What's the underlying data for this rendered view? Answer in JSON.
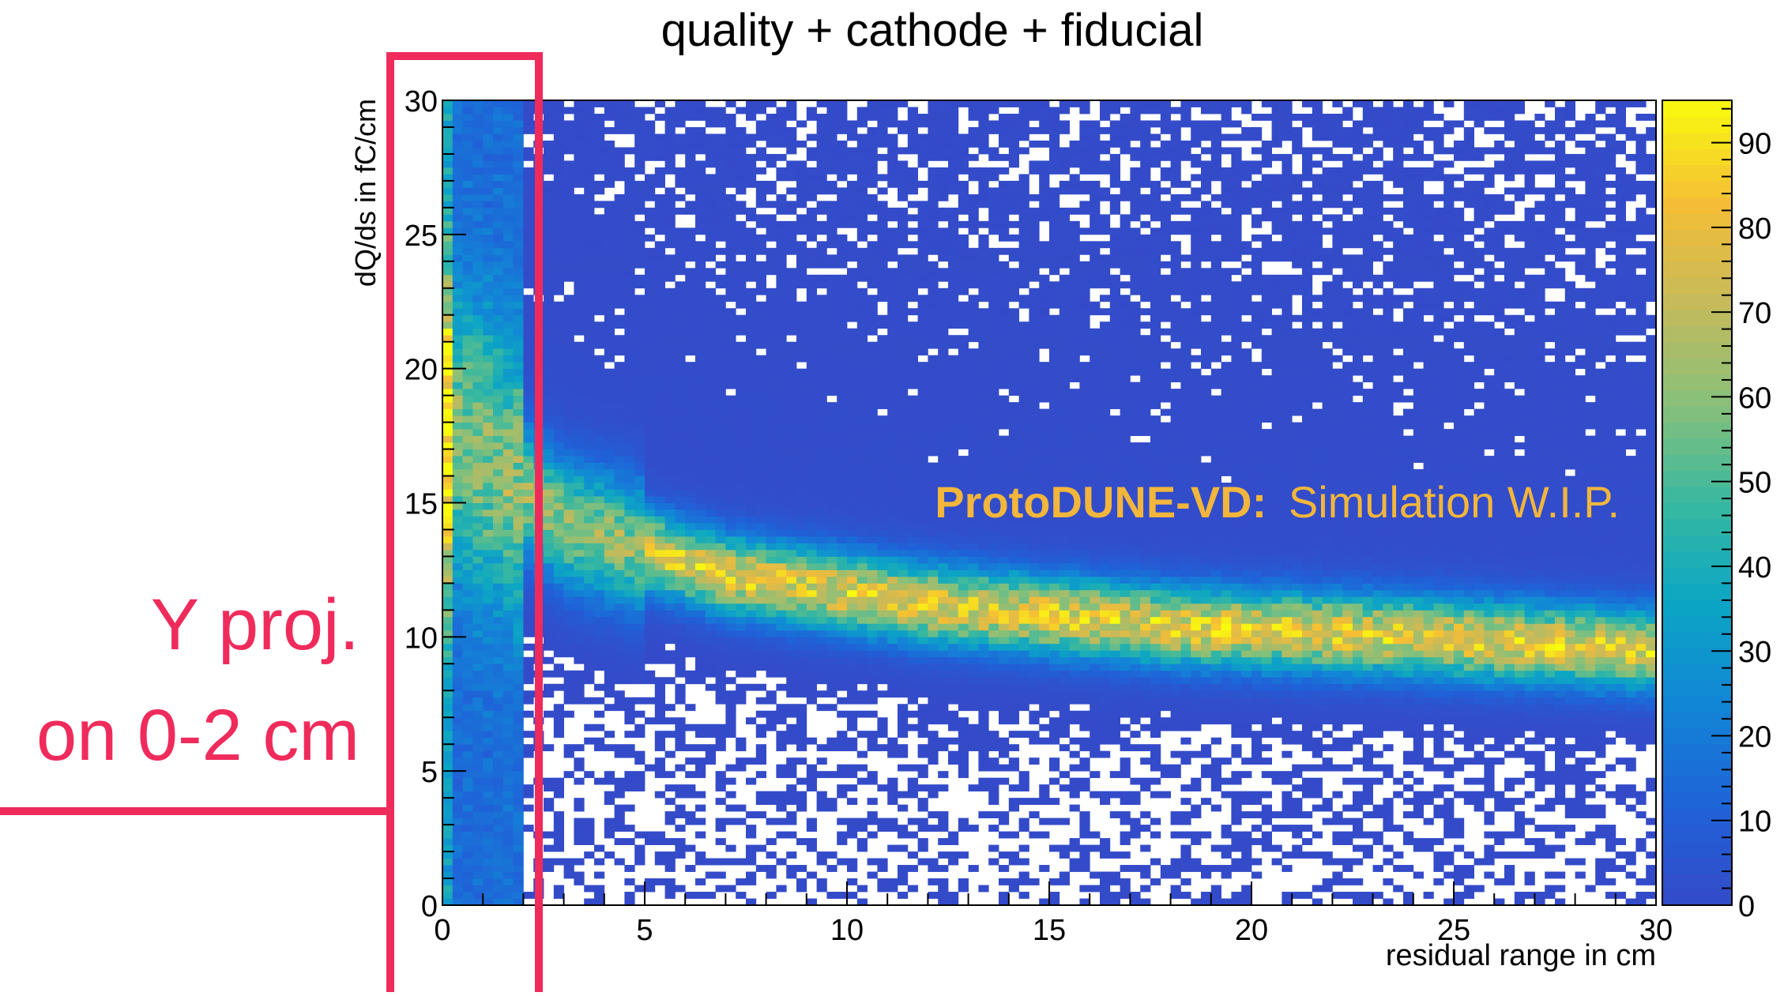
{
  "chart_data": {
    "type": "heatmap",
    "title": "quality + cathode + fiducial",
    "xlabel": "residual range in cm",
    "ylabel": "dQ/ds in fC/cm",
    "xlim": [
      0,
      30
    ],
    "ylim": [
      0,
      30
    ],
    "x_ticks": [
      "0",
      "5",
      "10",
      "15",
      "20",
      "25",
      "30"
    ],
    "y_ticks": [
      "0",
      "5",
      "10",
      "15",
      "20",
      "25",
      "30"
    ],
    "colorbar": {
      "range": [
        0,
        95
      ],
      "ticks": [
        "0",
        "10",
        "20",
        "30",
        "40",
        "50",
        "60",
        "70",
        "80",
        "90"
      ]
    },
    "band": {
      "description_values": [
        {
          "x": 0.5,
          "y": 17.5
        },
        {
          "x": 3,
          "y": 14.2
        },
        {
          "x": 7,
          "y": 12.3
        },
        {
          "x": 12,
          "y": 11.2
        },
        {
          "x": 18,
          "y": 10.4
        },
        {
          "x": 24,
          "y": 10.0
        },
        {
          "x": 30,
          "y": 9.5
        }
      ],
      "peak_counts": 85
    },
    "watermark_bold": "ProtoDUNE-VD:",
    "watermark_light": "Simulation W.I.P."
  },
  "annotation": {
    "line1": "Y proj.",
    "line2": "on 0-2 cm",
    "color": "#ef2b5c"
  }
}
